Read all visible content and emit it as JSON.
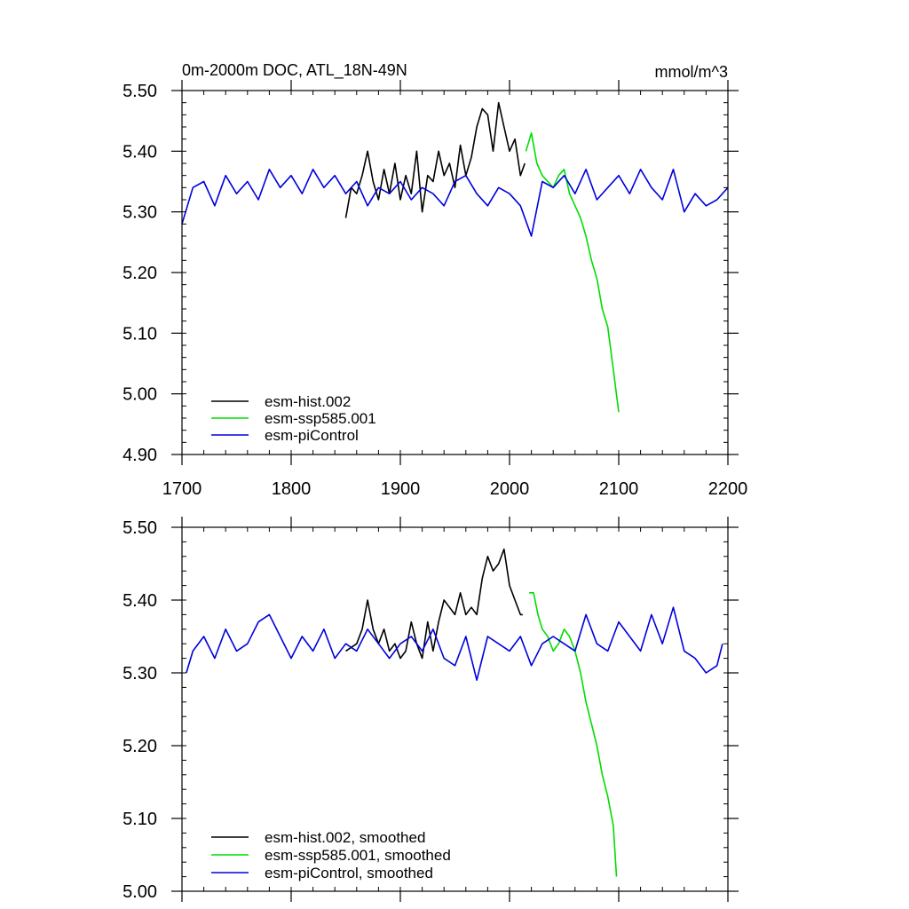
{
  "figure": {
    "title_left": "0m-2000m DOC, ATL_18N-49N",
    "title_right": "mmol/m^3"
  },
  "chart_data": [
    {
      "type": "line",
      "title": "0m-2000m DOC, ATL_18N-49N",
      "units": "mmol/m^3",
      "xlim": [
        1700,
        2200
      ],
      "ylim": [
        4.9,
        5.5
      ],
      "x_ticks": [
        1700,
        1800,
        1900,
        2000,
        2100,
        2200
      ],
      "x_tick_labels": [
        "1700",
        "1800",
        "1900",
        "2000",
        "2100",
        "2200"
      ],
      "y_ticks": [
        4.9,
        5.0,
        5.1,
        5.2,
        5.3,
        5.4,
        5.5
      ],
      "y_tick_labels": [
        "4.90",
        "5.00",
        "5.10",
        "5.20",
        "5.30",
        "5.40",
        "5.50"
      ],
      "legend_position": "bottom-left",
      "series": [
        {
          "name": "esm-hist.002",
          "color": "#000000",
          "x": [
            1850,
            1855,
            1860,
            1865,
            1870,
            1875,
            1880,
            1885,
            1890,
            1895,
            1900,
            1905,
            1910,
            1915,
            1920,
            1925,
            1930,
            1935,
            1940,
            1945,
            1950,
            1955,
            1960,
            1965,
            1970,
            1975,
            1980,
            1985,
            1990,
            1995,
            2000,
            2005,
            2010,
            2014
          ],
          "values": [
            5.29,
            5.34,
            5.33,
            5.36,
            5.4,
            5.35,
            5.32,
            5.37,
            5.33,
            5.38,
            5.32,
            5.36,
            5.33,
            5.4,
            5.3,
            5.36,
            5.35,
            5.4,
            5.36,
            5.38,
            5.34,
            5.41,
            5.36,
            5.39,
            5.44,
            5.47,
            5.46,
            5.4,
            5.48,
            5.44,
            5.4,
            5.42,
            5.36,
            5.38
          ]
        },
        {
          "name": "esm-ssp585.001",
          "color": "#00dd00",
          "x": [
            2015,
            2020,
            2025,
            2030,
            2035,
            2040,
            2045,
            2050,
            2055,
            2060,
            2065,
            2070,
            2075,
            2080,
            2085,
            2090,
            2095,
            2100
          ],
          "values": [
            5.4,
            5.43,
            5.38,
            5.36,
            5.35,
            5.34,
            5.36,
            5.37,
            5.33,
            5.31,
            5.29,
            5.26,
            5.22,
            5.19,
            5.14,
            5.11,
            5.04,
            4.97
          ]
        },
        {
          "name": "esm-piControl",
          "color": "#0000dd",
          "x": [
            1700,
            1710,
            1720,
            1730,
            1740,
            1750,
            1760,
            1770,
            1780,
            1790,
            1800,
            1810,
            1820,
            1830,
            1840,
            1850,
            1860,
            1870,
            1880,
            1890,
            1900,
            1910,
            1920,
            1930,
            1940,
            1950,
            1960,
            1970,
            1980,
            1990,
            2000,
            2010,
            2020,
            2030,
            2040,
            2050,
            2060,
            2070,
            2080,
            2090,
            2100,
            2110,
            2120,
            2130,
            2140,
            2150,
            2160,
            2170,
            2180,
            2190,
            2200
          ],
          "values": [
            5.28,
            5.34,
            5.35,
            5.31,
            5.36,
            5.33,
            5.35,
            5.32,
            5.37,
            5.34,
            5.36,
            5.33,
            5.37,
            5.34,
            5.36,
            5.33,
            5.35,
            5.31,
            5.34,
            5.33,
            5.35,
            5.32,
            5.34,
            5.33,
            5.31,
            5.35,
            5.36,
            5.33,
            5.31,
            5.34,
            5.33,
            5.31,
            5.26,
            5.35,
            5.34,
            5.36,
            5.33,
            5.37,
            5.32,
            5.34,
            5.36,
            5.33,
            5.37,
            5.34,
            5.32,
            5.37,
            5.3,
            5.33,
            5.31,
            5.32,
            5.34
          ]
        }
      ]
    },
    {
      "type": "line",
      "title": "",
      "xlim": [
        1700,
        2200
      ],
      "ylim": [
        5.0,
        5.5
      ],
      "y_ticks": [
        5.0,
        5.1,
        5.2,
        5.3,
        5.4,
        5.5
      ],
      "y_tick_labels": [
        "5.00",
        "5.10",
        "5.20",
        "5.30",
        "5.40",
        "5.50"
      ],
      "legend_position": "bottom-left",
      "series": [
        {
          "name": "esm-hist.002, smoothed",
          "color": "#000000",
          "x": [
            1850,
            1860,
            1865,
            1870,
            1875,
            1880,
            1885,
            1890,
            1895,
            1900,
            1905,
            1910,
            1915,
            1920,
            1925,
            1930,
            1935,
            1940,
            1945,
            1950,
            1955,
            1960,
            1965,
            1970,
            1975,
            1980,
            1985,
            1990,
            1995,
            2000,
            2005,
            2010,
            2012
          ],
          "values": [
            5.33,
            5.34,
            5.36,
            5.4,
            5.36,
            5.34,
            5.36,
            5.33,
            5.34,
            5.32,
            5.33,
            5.37,
            5.34,
            5.32,
            5.37,
            5.33,
            5.37,
            5.4,
            5.39,
            5.38,
            5.41,
            5.38,
            5.39,
            5.38,
            5.43,
            5.46,
            5.44,
            5.45,
            5.47,
            5.42,
            5.4,
            5.38,
            5.38
          ]
        },
        {
          "name": "esm-ssp585.001, smoothed",
          "color": "#00dd00",
          "x": [
            2018,
            2022,
            2026,
            2030,
            2035,
            2040,
            2045,
            2050,
            2055,
            2060,
            2065,
            2070,
            2075,
            2080,
            2085,
            2090,
            2095,
            2098
          ],
          "values": [
            5.41,
            5.41,
            5.38,
            5.36,
            5.35,
            5.33,
            5.34,
            5.36,
            5.35,
            5.33,
            5.3,
            5.26,
            5.23,
            5.2,
            5.16,
            5.13,
            5.09,
            5.02
          ]
        },
        {
          "name": "esm-piControl, smoothed",
          "color": "#0000dd",
          "x": [
            1704,
            1710,
            1720,
            1730,
            1740,
            1750,
            1760,
            1770,
            1780,
            1790,
            1800,
            1810,
            1820,
            1830,
            1840,
            1850,
            1860,
            1870,
            1880,
            1890,
            1900,
            1910,
            1920,
            1930,
            1940,
            1950,
            1960,
            1970,
            1980,
            1990,
            2000,
            2010,
            2020,
            2030,
            2040,
            2050,
            2060,
            2070,
            2080,
            2090,
            2100,
            2110,
            2120,
            2130,
            2140,
            2150,
            2160,
            2170,
            2180,
            2190,
            2195
          ],
          "values": [
            5.3,
            5.33,
            5.35,
            5.32,
            5.36,
            5.33,
            5.34,
            5.37,
            5.38,
            5.35,
            5.32,
            5.35,
            5.33,
            5.36,
            5.32,
            5.34,
            5.33,
            5.36,
            5.34,
            5.32,
            5.34,
            5.35,
            5.33,
            5.36,
            5.32,
            5.31,
            5.35,
            5.29,
            5.35,
            5.34,
            5.33,
            5.35,
            5.31,
            5.34,
            5.35,
            5.34,
            5.33,
            5.38,
            5.34,
            5.33,
            5.37,
            5.35,
            5.33,
            5.38,
            5.34,
            5.39,
            5.33,
            5.32,
            5.3,
            5.31,
            5.34
          ]
        }
      ]
    }
  ]
}
